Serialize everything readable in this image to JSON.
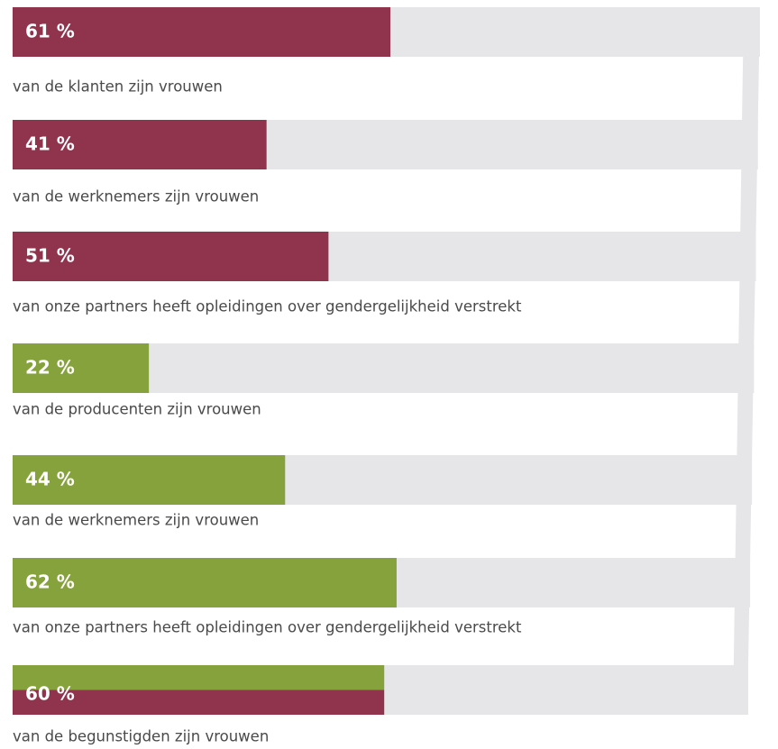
{
  "chart_data": {
    "type": "bar",
    "categories": [
      "van de klanten zijn vrouwen",
      "van de werknemers zijn vrouwen",
      "van onze partners heeft opleidingen over gendergelijkheid verstrekt",
      "van de producenten zijn vrouwen",
      "van de werknemers zijn vrouwen",
      "van onze partners heeft opleidingen over gendergelijkheid verstrekt",
      "van de begunstigden zijn vrouwen"
    ],
    "values": [
      61,
      41,
      51,
      22,
      44,
      62,
      60
    ],
    "value_labels": [
      "61 %",
      "41 %",
      "51 %",
      "22 %",
      "44 %",
      "62 %",
      "60 %"
    ],
    "colors": [
      "#90344e",
      "#90344e",
      "#90344e",
      "#86a23c",
      "#86a23c",
      "#86a23c",
      [
        "#86a23c",
        "#90344e"
      ]
    ],
    "xlim": [
      0,
      100
    ]
  }
}
